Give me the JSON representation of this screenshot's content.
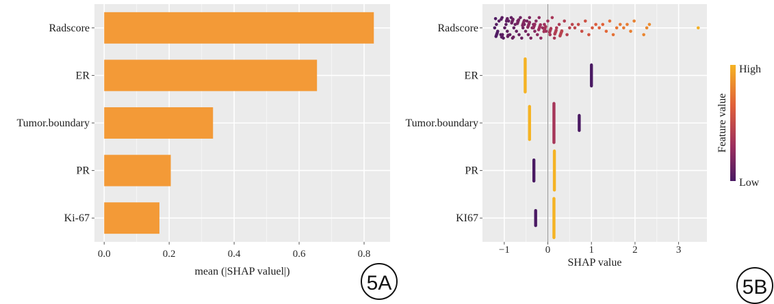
{
  "chart_data": [
    {
      "type": "bar",
      "orientation": "horizontal",
      "panel_label": "5A",
      "categories": [
        "Radscore",
        "ER",
        "Tumor.boundary",
        "PR",
        "Ki-67"
      ],
      "values": [
        0.83,
        0.655,
        0.335,
        0.205,
        0.17
      ],
      "xlabel": "mean (|SHAP valuel|)",
      "ylabel": "",
      "xlim": [
        -0.03,
        0.88
      ],
      "xticks": [
        "0.0",
        "0.2",
        "0.4",
        "0.6",
        "0.8"
      ],
      "bar_color": "#f39a37",
      "background_color": "#ebebeb",
      "grid": true
    },
    {
      "type": "scatter",
      "subtype": "beeswarm",
      "panel_label": "5B",
      "categories": [
        "Radscore",
        "ER",
        "Tumor.boundary",
        "PR",
        "KI67"
      ],
      "xlabel": "SHAP value",
      "ylabel": "",
      "xlim": [
        -1.5,
        3.65
      ],
      "xticks": [
        "−1",
        "0",
        "1",
        "2",
        "3"
      ],
      "background_color": "#ebebeb",
      "grid": true,
      "zero_line": true,
      "legend": {
        "title": "Feature value",
        "high_label": "High",
        "low_label": "Low",
        "placement": "right",
        "colors": [
          "#f5b324",
          "#e0603a",
          "#9c2f5e",
          "#4a1a63"
        ]
      },
      "features": [
        {
          "name": "Radscore",
          "points": [
            {
              "x": -1.22,
              "v": 0.02
            },
            {
              "x": -1.18,
              "v": 0.04
            },
            {
              "x": -1.15,
              "v": 0.03
            },
            {
              "x": -1.12,
              "v": 0.05
            },
            {
              "x": -1.08,
              "v": 0.04
            },
            {
              "x": -1.05,
              "v": 0.06
            },
            {
              "x": -1.02,
              "v": 0.05
            },
            {
              "x": -0.99,
              "v": 0.07
            },
            {
              "x": -0.96,
              "v": 0.06
            },
            {
              "x": -0.93,
              "v": 0.08
            },
            {
              "x": -0.9,
              "v": 0.07
            },
            {
              "x": -0.87,
              "v": 0.09
            },
            {
              "x": -0.84,
              "v": 0.08
            },
            {
              "x": -0.81,
              "v": 0.1
            },
            {
              "x": -0.78,
              "v": 0.09
            },
            {
              "x": -0.75,
              "v": 0.11
            },
            {
              "x": -0.72,
              "v": 0.1
            },
            {
              "x": -0.69,
              "v": 0.12
            },
            {
              "x": -0.66,
              "v": 0.11
            },
            {
              "x": -0.63,
              "v": 0.13
            },
            {
              "x": -0.6,
              "v": 0.12
            },
            {
              "x": -0.57,
              "v": 0.14
            },
            {
              "x": -0.54,
              "v": 0.13
            },
            {
              "x": -0.51,
              "v": 0.15
            },
            {
              "x": -0.48,
              "v": 0.16
            },
            {
              "x": -0.45,
              "v": 0.17
            },
            {
              "x": -0.42,
              "v": 0.18
            },
            {
              "x": -0.39,
              "v": 0.19
            },
            {
              "x": -0.36,
              "v": 0.2
            },
            {
              "x": -0.33,
              "v": 0.21
            },
            {
              "x": -0.3,
              "v": 0.22
            },
            {
              "x": -0.27,
              "v": 0.23
            },
            {
              "x": -0.24,
              "v": 0.24
            },
            {
              "x": -0.2,
              "v": 0.25
            },
            {
              "x": -0.16,
              "v": 0.26
            },
            {
              "x": -0.12,
              "v": 0.28
            },
            {
              "x": -0.08,
              "v": 0.3
            },
            {
              "x": -0.04,
              "v": 0.31
            },
            {
              "x": 0.0,
              "v": 0.33
            },
            {
              "x": 0.05,
              "v": 0.34
            },
            {
              "x": 0.1,
              "v": 0.36
            },
            {
              "x": 0.15,
              "v": 0.37
            },
            {
              "x": 0.2,
              "v": 0.38
            },
            {
              "x": 0.26,
              "v": 0.39
            },
            {
              "x": 0.32,
              "v": 0.4
            },
            {
              "x": 0.38,
              "v": 0.41
            },
            {
              "x": 0.44,
              "v": 0.43
            },
            {
              "x": 0.5,
              "v": 0.44
            },
            {
              "x": 0.56,
              "v": 0.46
            },
            {
              "x": 0.62,
              "v": 0.47
            },
            {
              "x": 0.7,
              "v": 0.5
            },
            {
              "x": 0.78,
              "v": 0.52
            },
            {
              "x": 0.86,
              "v": 0.55
            },
            {
              "x": 0.94,
              "v": 0.57
            },
            {
              "x": 1.02,
              "v": 0.6
            },
            {
              "x": 1.1,
              "v": 0.62
            },
            {
              "x": 1.18,
              "v": 0.64
            },
            {
              "x": 1.26,
              "v": 0.66
            },
            {
              "x": 1.34,
              "v": 0.68
            },
            {
              "x": 1.42,
              "v": 0.7
            },
            {
              "x": 1.5,
              "v": 0.72
            },
            {
              "x": 1.58,
              "v": 0.74
            },
            {
              "x": 1.66,
              "v": 0.75
            },
            {
              "x": 1.74,
              "v": 0.76
            },
            {
              "x": 1.82,
              "v": 0.77
            },
            {
              "x": 1.9,
              "v": 0.78
            },
            {
              "x": 1.98,
              "v": 0.79
            },
            {
              "x": 2.2,
              "v": 0.81
            },
            {
              "x": 2.27,
              "v": 0.82
            },
            {
              "x": 2.33,
              "v": 0.83
            },
            {
              "x": 3.45,
              "v": 0.99
            }
          ]
        },
        {
          "name": "ER",
          "points": [
            {
              "x": -0.52,
              "v": 1.0,
              "n": 12
            },
            {
              "x": 1.0,
              "v": 0.0,
              "n": 8
            }
          ]
        },
        {
          "name": "Tumor.boundary",
          "points": [
            {
              "x": -0.42,
              "v": 1.0,
              "n": 12
            },
            {
              "x": 0.14,
              "v": 0.35,
              "n": 14
            },
            {
              "x": 0.72,
              "v": 0.0,
              "n": 6
            }
          ]
        },
        {
          "name": "PR",
          "points": [
            {
              "x": -0.32,
              "v": 0.0,
              "n": 8
            },
            {
              "x": 0.15,
              "v": 1.0,
              "n": 14
            }
          ]
        },
        {
          "name": "KI67",
          "points": [
            {
              "x": -0.28,
              "v": 0.0,
              "n": 6
            },
            {
              "x": 0.14,
              "v": 1.0,
              "n": 14
            }
          ]
        }
      ]
    }
  ]
}
